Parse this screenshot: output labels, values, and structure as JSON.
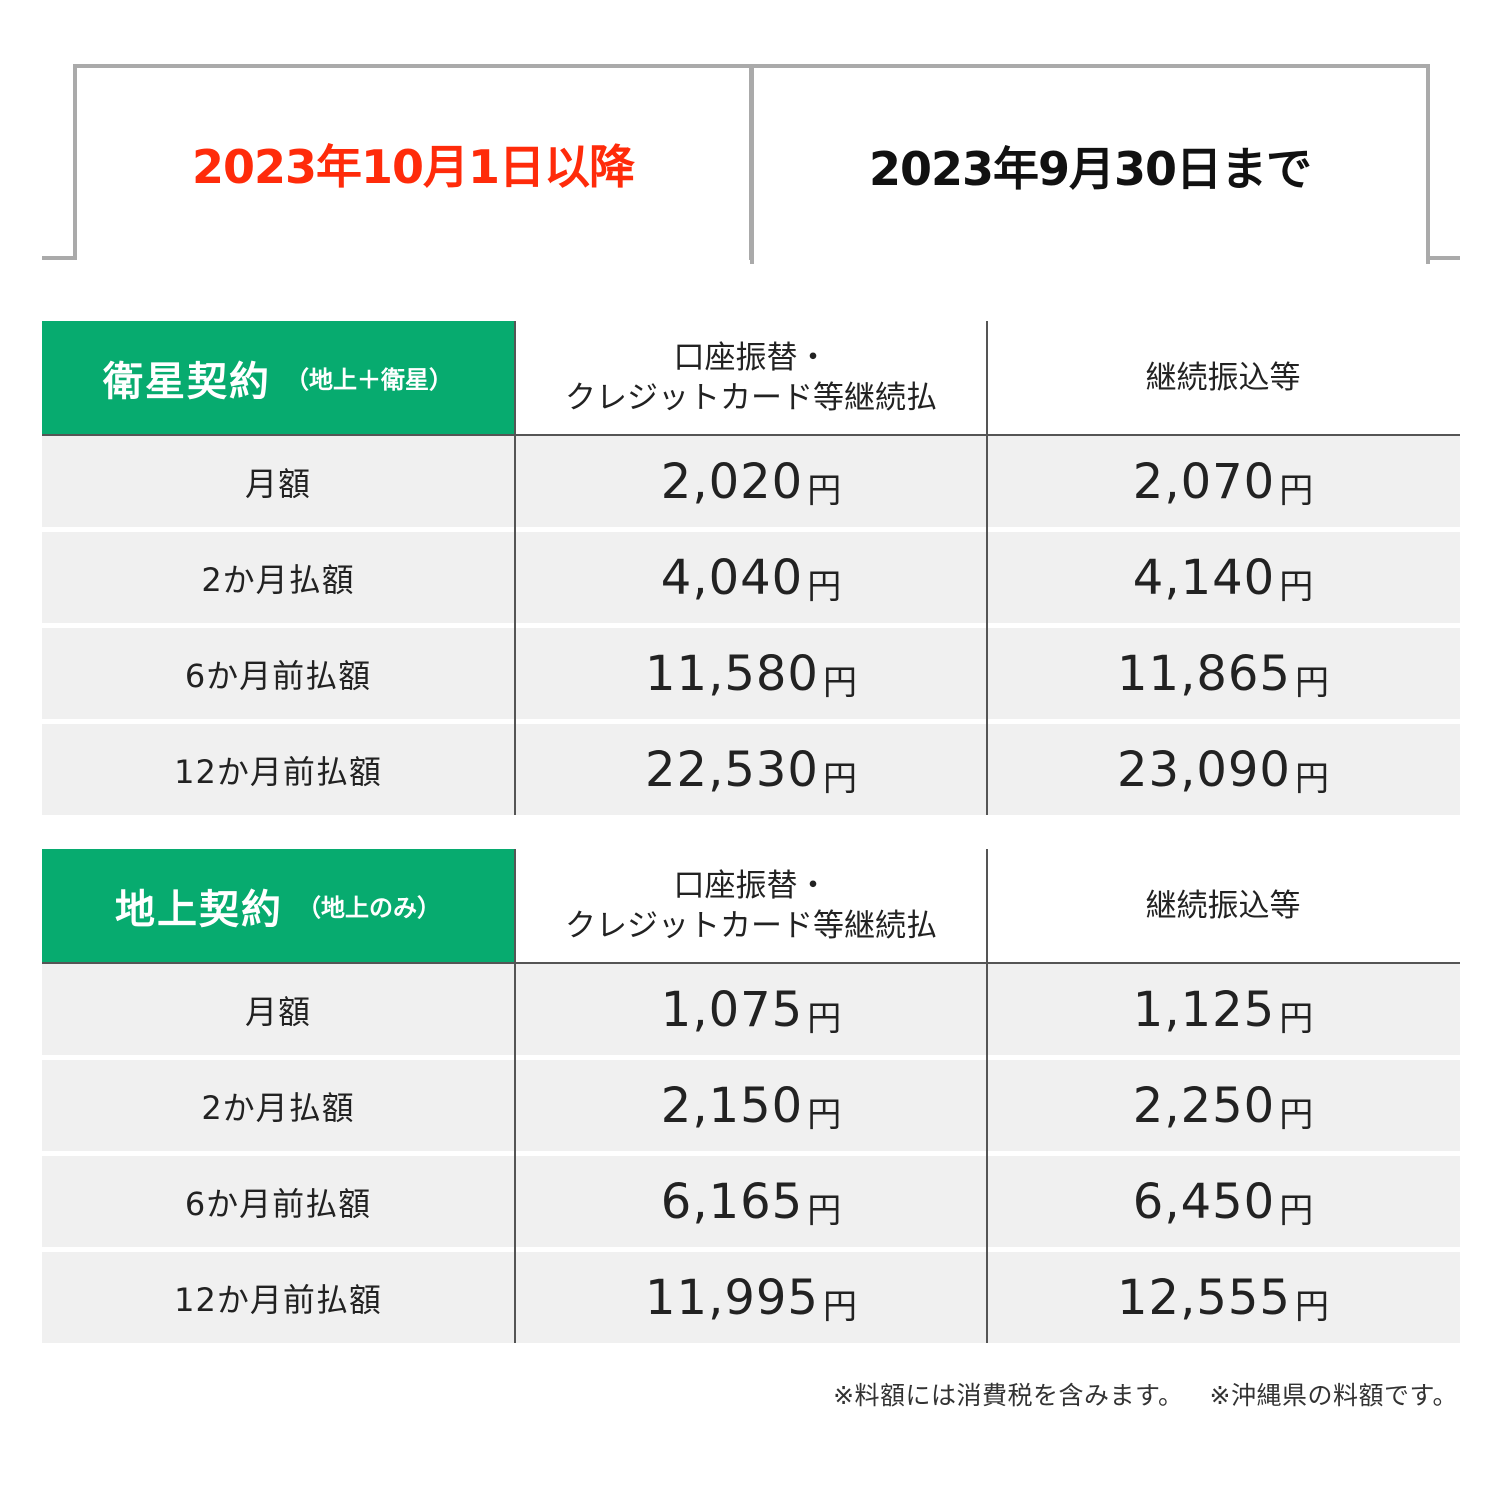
{
  "tabs": {
    "after_label": "2023年10月1日以降",
    "before_label": "2023年9月30日まで",
    "after_color": "#ff2b0a",
    "active_tab": "2023年10月1日以降"
  },
  "accent_color": "#07ab6f",
  "columns": {
    "col1_line1": "口座振替・",
    "col1_line2": "クレジットカード等継続払",
    "col2": "継続振込等"
  },
  "tables": [
    {
      "title": "衛星契約",
      "subtitle": "（地上＋衛星）",
      "rows": [
        {
          "label": "月額",
          "col1": "2,020",
          "col2": "2,070"
        },
        {
          "label": "2か月払額",
          "col1": "4,040",
          "col2": "4,140"
        },
        {
          "label": "6か月前払額",
          "col1": "11,580",
          "col2": "11,865"
        },
        {
          "label": "12か月前払額",
          "col1": "22,530",
          "col2": "23,090"
        }
      ]
    },
    {
      "title": "地上契約",
      "subtitle": "（地上のみ）",
      "rows": [
        {
          "label": "月額",
          "col1": "1,075",
          "col2": "1,125"
        },
        {
          "label": "2か月払額",
          "col1": "2,150",
          "col2": "2,250"
        },
        {
          "label": "6か月前払額",
          "col1": "6,165",
          "col2": "6,450"
        },
        {
          "label": "12か月前払額",
          "col1": "11,995",
          "col2": "12,555"
        }
      ]
    }
  ],
  "unit": "円",
  "footnotes": {
    "tax": "※料額には消費税を含みます。",
    "okinawa": "※沖縄県の料額です。"
  }
}
